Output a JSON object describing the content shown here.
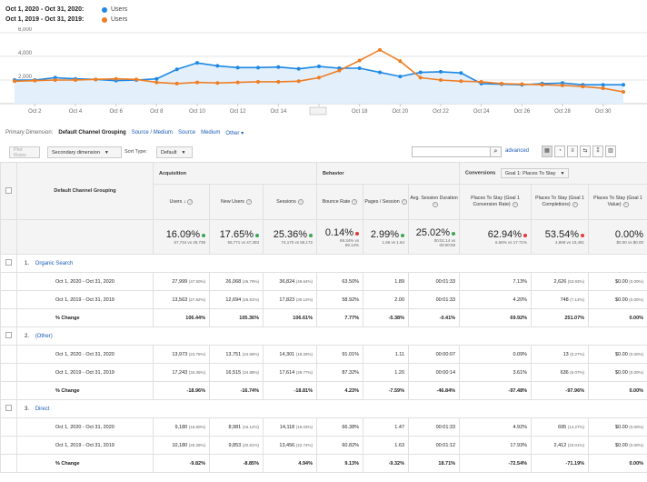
{
  "legend": {
    "range1": "Oct 1, 2020 - Oct 31, 2020:",
    "range2": "Oct 1, 2019 - Oct 31, 2019:",
    "series1": "Users",
    "series2": "Users",
    "color1": "#1e88e5",
    "color2": "#ef7d22"
  },
  "chart_data": {
    "type": "line",
    "ylim": [
      0,
      6000
    ],
    "yticks": [
      "6,000",
      "4,000",
      "2,000"
    ],
    "x": [
      "Oct 1",
      "Oct 2",
      "Oct 3",
      "Oct 4",
      "Oct 5",
      "Oct 6",
      "Oct 7",
      "Oct 8",
      "Oct 9",
      "Oct 10",
      "Oct 11",
      "Oct 12",
      "Oct 13",
      "Oct 14",
      "Oct 15",
      "Oct 16",
      "Oct 17",
      "Oct 18",
      "Oct 19",
      "Oct 20",
      "Oct 21",
      "Oct 22",
      "Oct 23",
      "Oct 24",
      "Oct 25",
      "Oct 26",
      "Oct 27",
      "Oct 28",
      "Oct 29",
      "Oct 30",
      "Oct 31"
    ],
    "xtick_labels": [
      "Oct 2",
      "Oct 4",
      "Oct 6",
      "Oct 8",
      "Oct 10",
      "Oct 12",
      "Oct 14",
      "Oct 16",
      "Oct 18",
      "Oct 20",
      "Oct 22",
      "Oct 24",
      "Oct 26",
      "Oct 28",
      "Oct 30"
    ],
    "series": [
      {
        "name": "Users",
        "color": "#1e88e5",
        "values": [
          2000,
          2000,
          2200,
          2100,
          2050,
          1950,
          2000,
          2100,
          2900,
          3450,
          3200,
          3050,
          3050,
          3100,
          2950,
          3150,
          3000,
          3000,
          2650,
          2300,
          2650,
          2700,
          2600,
          1700,
          1650,
          1600,
          1700,
          1750,
          1600,
          1600,
          1600
        ]
      },
      {
        "name": "Users",
        "color": "#ef7d22",
        "values": [
          1900,
          1950,
          2000,
          2000,
          2050,
          2100,
          2050,
          1800,
          1700,
          1800,
          1750,
          1800,
          1850,
          1850,
          1900,
          2200,
          2800,
          3650,
          4550,
          3600,
          2200,
          2000,
          1900,
          1850,
          1700,
          1650,
          1600,
          1550,
          1450,
          1300,
          1000
        ]
      }
    ]
  },
  "toolbar": {
    "primary_dim_label": "Primary Dimension:",
    "primary_dim_active": "Default Channel Grouping",
    "links": [
      "Source / Medium",
      "Source",
      "Medium",
      "Other"
    ]
  },
  "controls": {
    "plot_rows": "Plot Rows",
    "secondary": "Secondary dimension",
    "sort_type_label": "Sort Type:",
    "sort_default": "Default",
    "advanced": "advanced"
  },
  "table": {
    "dim_header": "Default Channel Grouping",
    "acquisition": "Acquisition",
    "behavior": "Behavior",
    "conversions_label": "Conversions",
    "conversions_goal": "Goal 1: Places To Stay",
    "columns": [
      "Users",
      "New Users",
      "Sessions",
      "Bounce Rate",
      "Pages / Session",
      "Avg. Session Duration",
      "Places To Stay (Goal 1 Conversion Rate)",
      "Places To Stay (Goal 1 Completions)",
      "Places To Stay (Goal 1 Value)"
    ],
    "totals": [
      {
        "big": "16.09%",
        "small1": "57,744 vs 49,739",
        "small2": "",
        "dot": "#3aa757"
      },
      {
        "big": "17.65%",
        "small1": "55,771 vs 47,393",
        "small2": "",
        "dot": "#3aa757"
      },
      {
        "big": "25.36%",
        "small1": "74,170 vs 59,172",
        "small2": "",
        "dot": "#3aa757"
      },
      {
        "big": "0.14%",
        "small1": "69.34% vs",
        "small2": "69.14%",
        "dot": "#e53935"
      },
      {
        "big": "2.99%",
        "small1": "1.66 vs 1.64",
        "small2": "",
        "dot": "#3aa757"
      },
      {
        "big": "25.02%",
        "small1": "00:01:14 vs",
        "small2": "00:00:59",
        "dot": "#3aa757"
      },
      {
        "big": "62.94%",
        "small1": "6.56% vs 17.71%",
        "small2": "",
        "dot": "#e53935"
      },
      {
        "big": "53.54%",
        "small1": "4,869 vs 10,481",
        "small2": "",
        "dot": "#e53935"
      },
      {
        "big": "0.00%",
        "small1": "$0.00 vs $0.00",
        "small2": "",
        "dot": ""
      }
    ],
    "groups": [
      {
        "num": "1.",
        "name": "Organic Search",
        "rows": [
          {
            "label": "Oct 1, 2020 - Oct 31, 2020",
            "cells": [
              [
                "27,999",
                "(47.50%)"
              ],
              [
                "26,068",
                "(46.79%)"
              ],
              [
                "36,824",
                "(49.64%)"
              ],
              [
                "63.50%",
                ""
              ],
              [
                "1.89",
                ""
              ],
              [
                "00:01:33",
                ""
              ],
              [
                "7.13%",
                ""
              ],
              [
                "2,626",
                "(53.93%)"
              ],
              [
                "$0.00",
                "(0.00%)"
              ]
            ]
          },
          {
            "label": "Oct 1, 2019 - Oct 31, 2019",
            "cells": [
              [
                "13,563",
                "(27.82%)"
              ],
              [
                "12,694",
                "(26.81%)"
              ],
              [
                "17,823",
                "(30.12%)"
              ],
              [
                "58.92%",
                ""
              ],
              [
                "2.00",
                ""
              ],
              [
                "00:01:33",
                ""
              ],
              [
                "4.20%",
                ""
              ],
              [
                "748",
                "(7.14%)"
              ],
              [
                "$0.00",
                "(0.00%)"
              ]
            ]
          },
          {
            "label": "% Change",
            "pct": true,
            "cells": [
              [
                "106.44%",
                ""
              ],
              [
                "105.36%",
                ""
              ],
              [
                "106.61%",
                ""
              ],
              [
                "7.77%",
                ""
              ],
              [
                "-5.38%",
                ""
              ],
              [
                "-0.41%",
                ""
              ],
              [
                "69.92%",
                ""
              ],
              [
                "251.07%",
                ""
              ],
              [
                "0.00%",
                ""
              ]
            ]
          }
        ]
      },
      {
        "num": "2.",
        "name": "(Other)",
        "rows": [
          {
            "label": "Oct 1, 2020 - Oct 31, 2020",
            "cells": [
              [
                "13,973",
                "(23.75%)"
              ],
              [
                "13,751",
                "(24.68%)"
              ],
              [
                "14,301",
                "(19.28%)"
              ],
              [
                "91.01%",
                ""
              ],
              [
                "1.11",
                ""
              ],
              [
                "00:00:07",
                ""
              ],
              [
                "0.09%",
                ""
              ],
              [
                "13",
                "(0.27%)"
              ],
              [
                "$0.00",
                "(0.00%)"
              ]
            ]
          },
          {
            "label": "Oct 1, 2019 - Oct 31, 2019",
            "cells": [
              [
                "17,243",
                "(34.35%)"
              ],
              [
                "16,515",
                "(34.88%)"
              ],
              [
                "17,614",
                "(29.77%)"
              ],
              [
                "87.32%",
                ""
              ],
              [
                "1.20",
                ""
              ],
              [
                "00:00:14",
                ""
              ],
              [
                "3.61%",
                ""
              ],
              [
                "636",
                "(6.07%)"
              ],
              [
                "$0.00",
                "(0.00%)"
              ]
            ]
          },
          {
            "label": "% Change",
            "pct": true,
            "cells": [
              [
                "-18.96%",
                ""
              ],
              [
                "-16.74%",
                ""
              ],
              [
                "-18.81%",
                ""
              ],
              [
                "4.23%",
                ""
              ],
              [
                "-7.59%",
                ""
              ],
              [
                "-46.84%",
                ""
              ],
              [
                "-97.48%",
                ""
              ],
              [
                "-97.96%",
                ""
              ],
              [
                "0.00%",
                ""
              ]
            ]
          }
        ]
      },
      {
        "num": "3.",
        "name": "Direct",
        "rows": [
          {
            "label": "Oct 1, 2020 - Oct 31, 2020",
            "cells": [
              [
                "9,180",
                "(15.60%)"
              ],
              [
                "8,981",
                "(16.12%)"
              ],
              [
                "14,118",
                "(19.03%)"
              ],
              [
                "66.38%",
                ""
              ],
              [
                "1.47",
                ""
              ],
              [
                "00:01:33",
                ""
              ],
              [
                "4.92%",
                ""
              ],
              [
                "695",
                "(14.27%)"
              ],
              [
                "$0.00",
                "(0.00%)"
              ]
            ]
          },
          {
            "label": "Oct 1, 2019 - Oct 31, 2019",
            "cells": [
              [
                "10,180",
                "(20.28%)"
              ],
              [
                "9,853",
                "(20.81%)"
              ],
              [
                "13,456",
                "(22.74%)"
              ],
              [
                "60.82%",
                ""
              ],
              [
                "1.63",
                ""
              ],
              [
                "00:01:12",
                ""
              ],
              [
                "17.93%",
                ""
              ],
              [
                "2,412",
                "(23.01%)"
              ],
              [
                "$0.00",
                "(0.00%)"
              ]
            ]
          },
          {
            "label": "% Change",
            "pct": true,
            "cells": [
              [
                "-9.82%",
                ""
              ],
              [
                "-8.85%",
                ""
              ],
              [
                "4.94%",
                ""
              ],
              [
                "9.13%",
                ""
              ],
              [
                "-9.32%",
                ""
              ],
              [
                "18.71%",
                ""
              ],
              [
                "-72.54%",
                ""
              ],
              [
                "-71.19%",
                ""
              ],
              [
                "0.00%",
                ""
              ]
            ]
          }
        ]
      }
    ]
  }
}
